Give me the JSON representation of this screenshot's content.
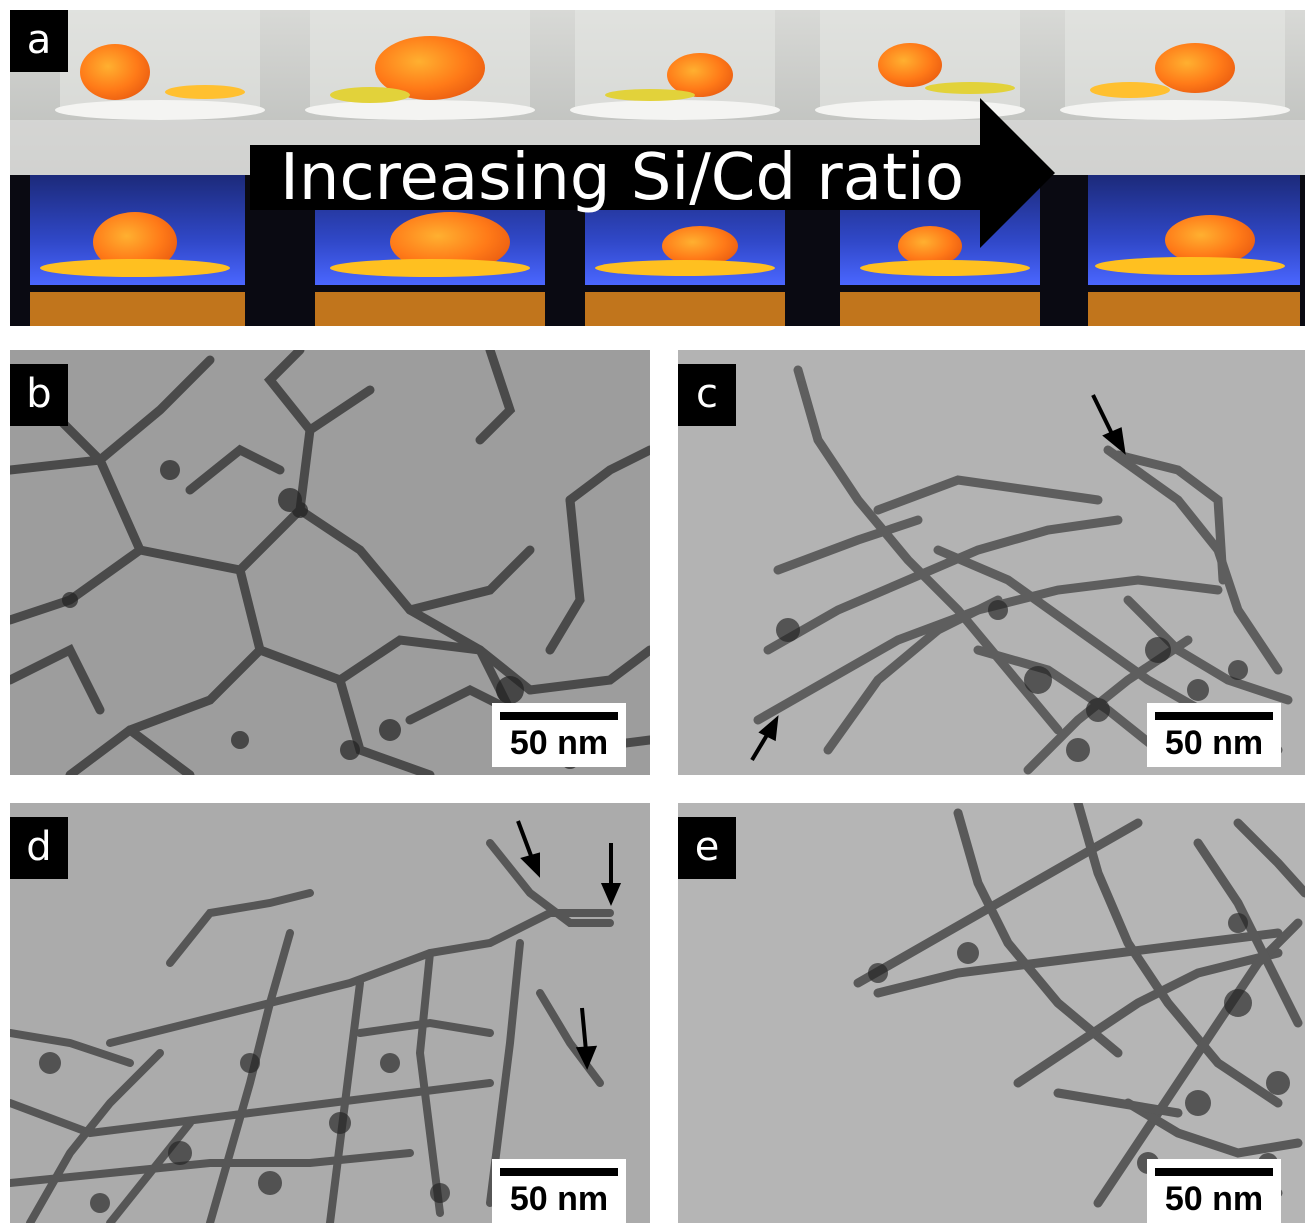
{
  "figure": {
    "panel_a": {
      "label": "a",
      "arrow_text": "Increasing Si/Cd ratio"
    },
    "panel_b": {
      "label": "b",
      "scale_bar": "50 nm"
    },
    "panel_c": {
      "label": "c",
      "scale_bar": "50 nm"
    },
    "panel_d": {
      "label": "d",
      "scale_bar": "50 nm"
    },
    "panel_e": {
      "label": "e",
      "scale_bar": "50 nm"
    }
  },
  "colors": {
    "tem_background_b": "#9a9a9a",
    "tem_background_light": "#b0b0b0",
    "filament": "#3a3a3a",
    "glow_orange": "#ff8a1a",
    "uv_blue": "#3a55d8",
    "label_box": "#000000"
  }
}
